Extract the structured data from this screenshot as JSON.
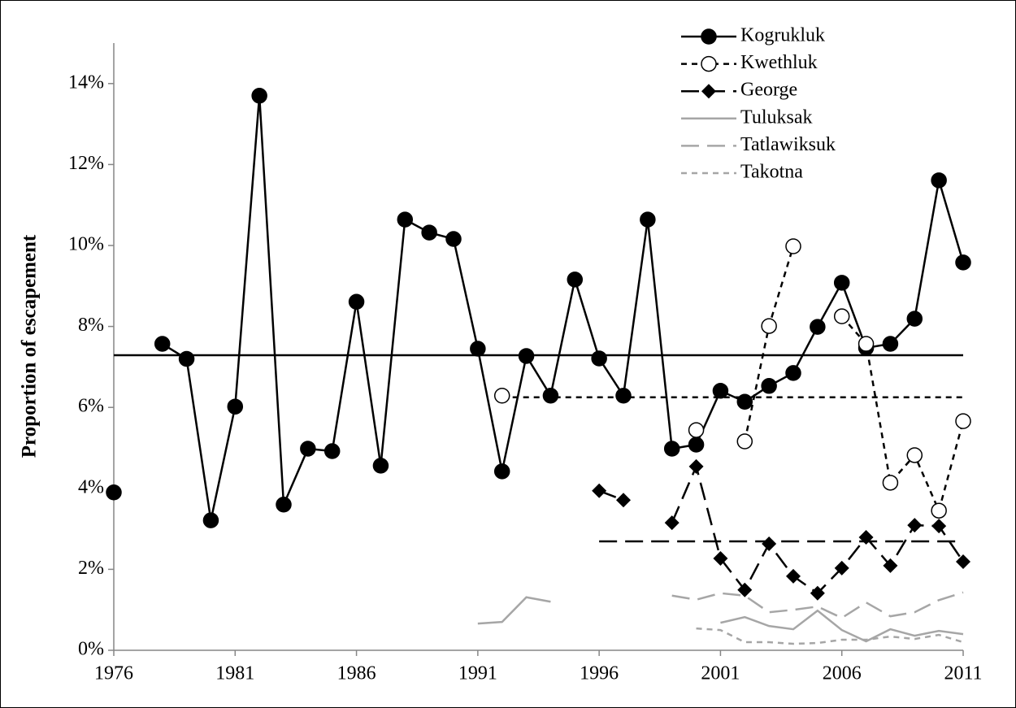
{
  "chart_data": {
    "type": "line",
    "y_label": "Proportion of escapement",
    "x": [
      1976,
      1977,
      1978,
      1979,
      1980,
      1981,
      1982,
      1983,
      1984,
      1985,
      1986,
      1987,
      1988,
      1989,
      1990,
      1991,
      1992,
      1993,
      1994,
      1995,
      1996,
      1997,
      1998,
      1999,
      2000,
      2001,
      2002,
      2003,
      2004,
      2005,
      2006,
      2007,
      2008,
      2009,
      2010,
      2011
    ],
    "xlim": [
      1976,
      2011
    ],
    "xticks": [
      1976,
      1981,
      1986,
      1991,
      1996,
      2001,
      2006,
      2011
    ],
    "ylim": [
      0,
      15
    ],
    "yticks": [
      {
        "value": 0,
        "label": "0%"
      },
      {
        "value": 2,
        "label": "2%"
      },
      {
        "value": 4,
        "label": "4%"
      },
      {
        "value": 6,
        "label": "6%"
      },
      {
        "value": 8,
        "label": "8%"
      },
      {
        "value": 10,
        "label": "10%"
      },
      {
        "value": 12,
        "label": "12%"
      },
      {
        "value": 14,
        "label": "14%"
      }
    ],
    "legend": "top-right",
    "series": [
      {
        "name": "Kogrukluk",
        "color": "#000000",
        "dash": "solid",
        "marker": "circle",
        "mean": 7.29,
        "values": [
          3.9,
          null,
          7.57,
          7.2,
          3.21,
          6.02,
          13.7,
          3.6,
          4.98,
          4.92,
          8.61,
          4.56,
          10.64,
          10.32,
          10.16,
          7.45,
          4.42,
          7.27,
          6.29,
          9.16,
          7.21,
          6.29,
          10.64,
          4.98,
          5.08,
          6.41,
          6.14,
          6.53,
          6.85,
          7.99,
          9.08,
          7.47,
          7.57,
          8.19,
          11.61,
          9.58
        ]
      },
      {
        "name": "Kwethluk",
        "color": "#000000",
        "dash": "short",
        "marker": "open-circle",
        "mean": 6.25,
        "values": [
          null,
          null,
          null,
          null,
          null,
          null,
          null,
          null,
          null,
          null,
          null,
          null,
          null,
          null,
          null,
          null,
          6.29,
          null,
          null,
          null,
          null,
          null,
          null,
          null,
          5.44,
          null,
          5.16,
          8.01,
          9.98,
          null,
          8.25,
          7.57,
          4.14,
          4.82,
          3.45,
          5.66
        ]
      },
      {
        "name": "George",
        "color": "#000000",
        "dash": "long",
        "marker": "diamond",
        "mean": 2.69,
        "values": [
          null,
          null,
          null,
          null,
          null,
          null,
          null,
          null,
          null,
          null,
          null,
          null,
          null,
          null,
          null,
          null,
          null,
          null,
          null,
          null,
          3.94,
          3.71,
          null,
          3.15,
          4.54,
          2.27,
          1.49,
          2.63,
          1.83,
          1.41,
          2.03,
          2.79,
          2.09,
          3.09,
          3.07,
          2.19
        ]
      },
      {
        "name": "Tuluksak",
        "color": "#a6a6a6",
        "dash": "solid",
        "marker": "none",
        "values": [
          null,
          null,
          null,
          null,
          null,
          null,
          null,
          null,
          null,
          null,
          null,
          null,
          null,
          null,
          null,
          0.66,
          0.7,
          1.31,
          1.2,
          null,
          null,
          null,
          null,
          null,
          null,
          0.68,
          0.82,
          0.6,
          0.52,
          0.98,
          0.5,
          0.22,
          0.52,
          0.36,
          0.48,
          0.4
        ]
      },
      {
        "name": "Tatlawiksuk",
        "color": "#a6a6a6",
        "dash": "long",
        "marker": "none",
        "values": [
          null,
          null,
          null,
          null,
          null,
          null,
          null,
          null,
          null,
          null,
          null,
          null,
          null,
          null,
          null,
          null,
          null,
          null,
          null,
          null,
          null,
          null,
          null,
          1.35,
          1.25,
          1.41,
          1.35,
          0.94,
          1.0,
          1.08,
          0.8,
          1.18,
          0.84,
          0.94,
          1.24,
          1.43
        ]
      },
      {
        "name": "Takotna",
        "color": "#a6a6a6",
        "dash": "short",
        "marker": "none",
        "values": [
          null,
          null,
          null,
          null,
          null,
          null,
          null,
          null,
          null,
          null,
          null,
          null,
          null,
          null,
          null,
          null,
          null,
          null,
          null,
          null,
          null,
          null,
          null,
          null,
          0.54,
          0.5,
          0.2,
          0.2,
          0.16,
          0.18,
          0.26,
          0.26,
          0.34,
          0.28,
          0.38,
          0.2
        ]
      }
    ]
  }
}
